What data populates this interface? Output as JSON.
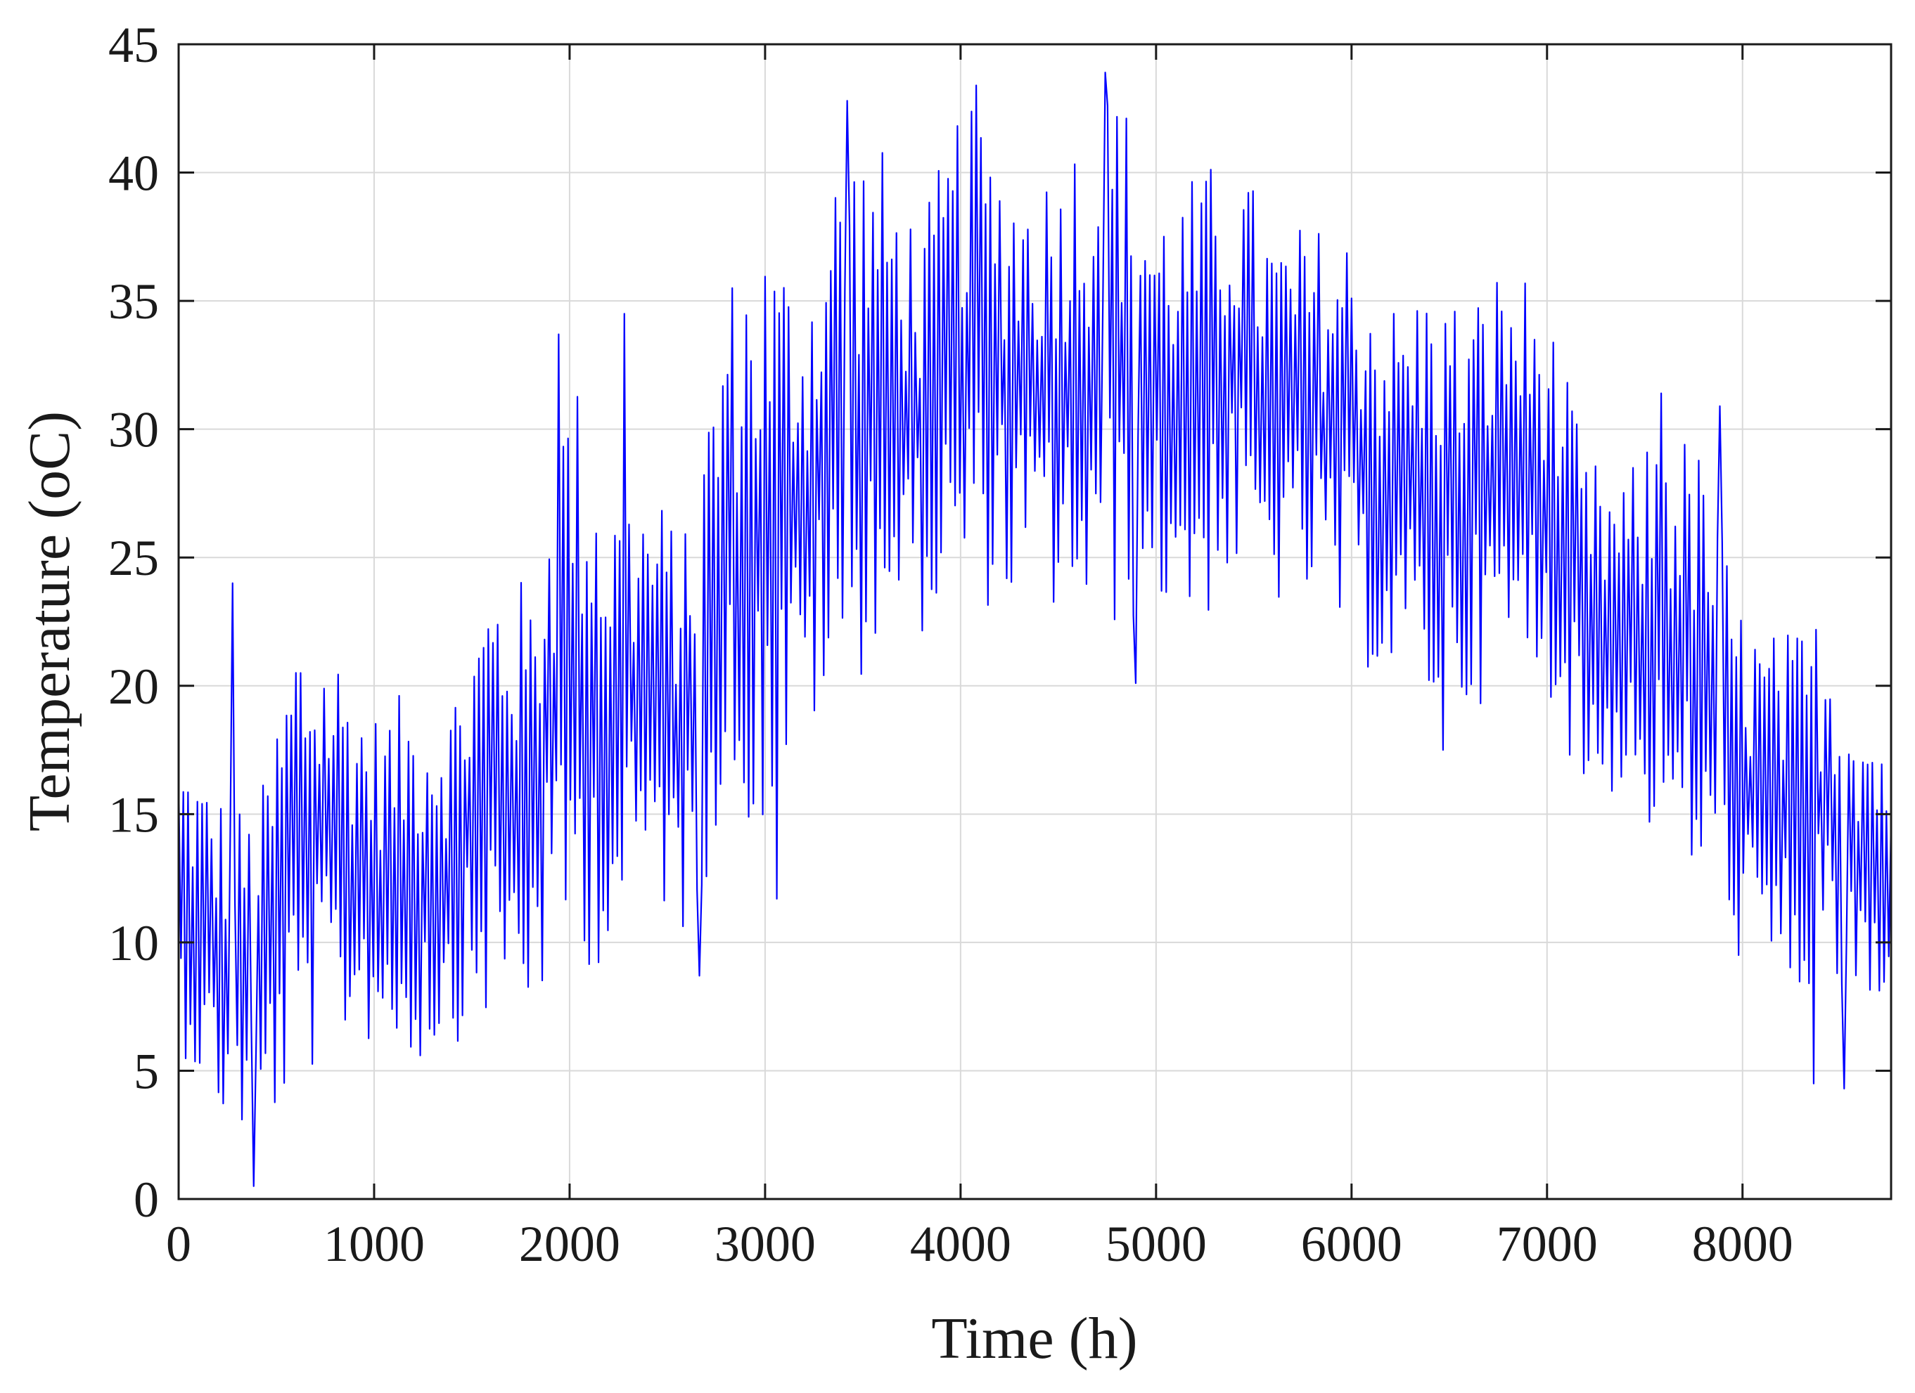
{
  "chart_data": {
    "type": "line",
    "title": "",
    "xlabel": "Time (h)",
    "ylabel": "Temperature (oC)",
    "xlim": [
      0,
      8760
    ],
    "ylim": [
      0,
      45
    ],
    "xticks": [
      0,
      1000,
      2000,
      3000,
      4000,
      5000,
      6000,
      7000,
      8000
    ],
    "yticks": [
      0,
      5,
      10,
      15,
      20,
      25,
      30,
      35,
      40,
      45
    ],
    "grid": true,
    "line_color": "#0000ff",
    "series": [
      {
        "sample_interval_h": 12,
        "envelope": {
          "x": [
            0,
            200,
            400,
            600,
            800,
            1000,
            1200,
            1400,
            1600,
            1800,
            2000,
            2200,
            2400,
            2600,
            2800,
            3000,
            3200,
            3400,
            3600,
            3800,
            4000,
            4200,
            4400,
            4600,
            4800,
            5000,
            5200,
            5400,
            5600,
            5800,
            6000,
            6200,
            6400,
            6600,
            6800,
            7000,
            7200,
            7400,
            7600,
            7800,
            8000,
            8200,
            8400,
            8600,
            8760
          ],
          "max": [
            18,
            16,
            15,
            23,
            22,
            19,
            20,
            20,
            25,
            24,
            33,
            28,
            28,
            26,
            36,
            38,
            36,
            42,
            41,
            38,
            43,
            41,
            40,
            42,
            44,
            39,
            40,
            41,
            38,
            38,
            38,
            35,
            36,
            35,
            37,
            35,
            29,
            28,
            31,
            29,
            23,
            22,
            23,
            20,
            19
          ],
          "min": [
            6,
            3,
            2,
            4,
            6,
            6,
            5,
            6,
            7,
            7,
            9,
            9,
            12,
            10,
            15,
            14,
            18,
            19,
            22,
            22,
            23,
            23,
            23,
            22,
            22,
            23,
            22,
            24,
            23,
            23,
            21,
            20,
            19,
            19,
            20,
            20,
            15,
            16,
            13,
            12,
            9,
            7,
            8,
            7,
            5
          ],
          "spikes": [
            [
              280,
              24
            ],
            [
              390,
              0.5
            ],
            [
              1950,
              33.7
            ],
            [
              2280,
              34.5
            ],
            [
              2670,
              8.7
            ],
            [
              3060,
              11.7
            ],
            [
              3420,
              42.8
            ],
            [
              4080,
              43.4
            ],
            [
              4740,
              43.9
            ],
            [
              4900,
              20.1
            ],
            [
              6470,
              17.5
            ],
            [
              7590,
              31.4
            ],
            [
              7890,
              30.9
            ],
            [
              8360,
              4.5
            ],
            [
              8520,
              4.3
            ]
          ]
        }
      }
    ]
  }
}
